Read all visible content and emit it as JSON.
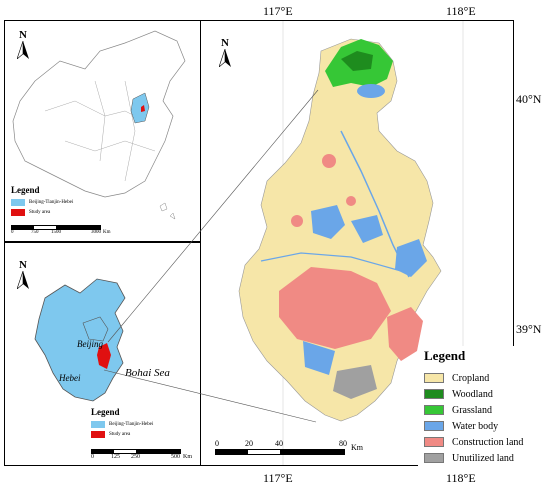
{
  "main_map": {
    "graticule": {
      "lon_top": [
        "117°E",
        "118°E"
      ],
      "lon_bottom": [
        "117°E",
        "118°E"
      ],
      "lat_right": [
        "40°N",
        "39°N"
      ]
    },
    "north": "N",
    "legend": {
      "title": "Legend",
      "items": [
        {
          "label": "Cropland",
          "color": "#f6e6a8"
        },
        {
          "label": "Woodland",
          "color": "#1e8c1e"
        },
        {
          "label": "Grassland",
          "color": "#36c736"
        },
        {
          "label": "Water body",
          "color": "#6aa6e8"
        },
        {
          "label": "Construction land",
          "color": "#f08a84"
        },
        {
          "label": "Unutilized land",
          "color": "#a0a0a0"
        }
      ]
    },
    "scale": {
      "ticks": [
        "0",
        "20",
        "40",
        "80"
      ],
      "unit": "Km"
    }
  },
  "china_inset": {
    "north": "N",
    "legend": {
      "title": "Legend",
      "items": [
        {
          "label": "Beijing-Tianjin-Hebei",
          "color": "#7ec8ee"
        },
        {
          "label": "Study area",
          "color": "#e01010"
        }
      ]
    },
    "scale": {
      "ticks": [
        "0",
        "750",
        "1500",
        "3000"
      ],
      "unit": "Km"
    }
  },
  "region_inset": {
    "north": "N",
    "labels": {
      "beijing": "Beijing",
      "hebei": "Hebei",
      "sea": "Bohai Sea"
    },
    "legend": {
      "title": "Legend",
      "items": [
        {
          "label": "Beijing-Tianjin-Hebei",
          "color": "#7ec8ee"
        },
        {
          "label": "Study area",
          "color": "#e01010"
        }
      ]
    },
    "scale": {
      "ticks": [
        "0",
        "125",
        "250",
        "500"
      ],
      "unit": "Km"
    }
  }
}
